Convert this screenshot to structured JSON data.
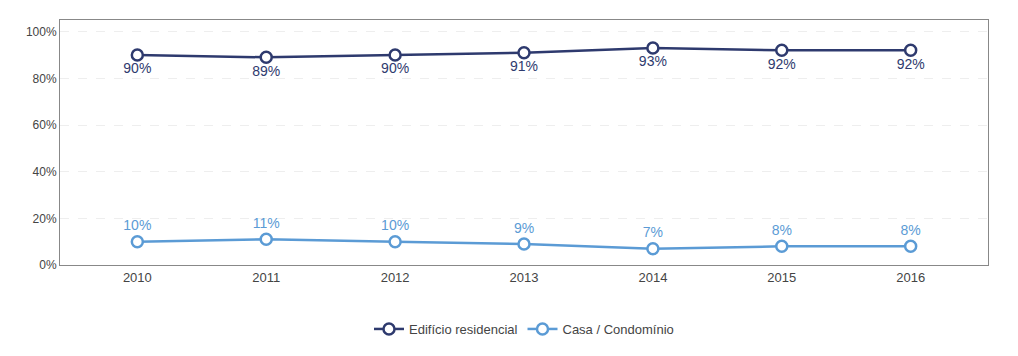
{
  "chart_data": {
    "type": "line",
    "x": [
      2010,
      2011,
      2012,
      2013,
      2014,
      2015,
      2016
    ],
    "series": [
      {
        "name": "Edifício residencial",
        "color": "#2e3a6e",
        "values": [
          0.9,
          0.89,
          0.9,
          0.91,
          0.93,
          0.92,
          0.92
        ],
        "value_labels": [
          "90%",
          "89%",
          "90%",
          "91%",
          "93%",
          "92%",
          "92%"
        ]
      },
      {
        "name": "Casa / Condomínio",
        "color": "#5b9bd5",
        "values": [
          0.1,
          0.11,
          0.1,
          0.09,
          0.07,
          0.08,
          0.08
        ],
        "value_labels": [
          "10%",
          "11%",
          "10%",
          "9%",
          "7%",
          "8%",
          "8%"
        ]
      }
    ],
    "xlim": [
      2009.4,
      2016.6
    ],
    "xticks": [
      2010,
      2011,
      2012,
      2013,
      2014,
      2015,
      2016
    ],
    "ylim": [
      0,
      1.05
    ],
    "yticks": [
      {
        "value": 0.0,
        "label": "0%"
      },
      {
        "value": 0.2,
        "label": "20%"
      },
      {
        "value": 0.4,
        "label": "40%"
      },
      {
        "value": 0.6,
        "label": "60%"
      },
      {
        "value": 0.8,
        "label": "80%"
      },
      {
        "value": 1.0,
        "label": "100%"
      }
    ],
    "grid": true,
    "legend": "bottom",
    "data_labels": true,
    "marker": "circle",
    "line_style": "solid"
  }
}
